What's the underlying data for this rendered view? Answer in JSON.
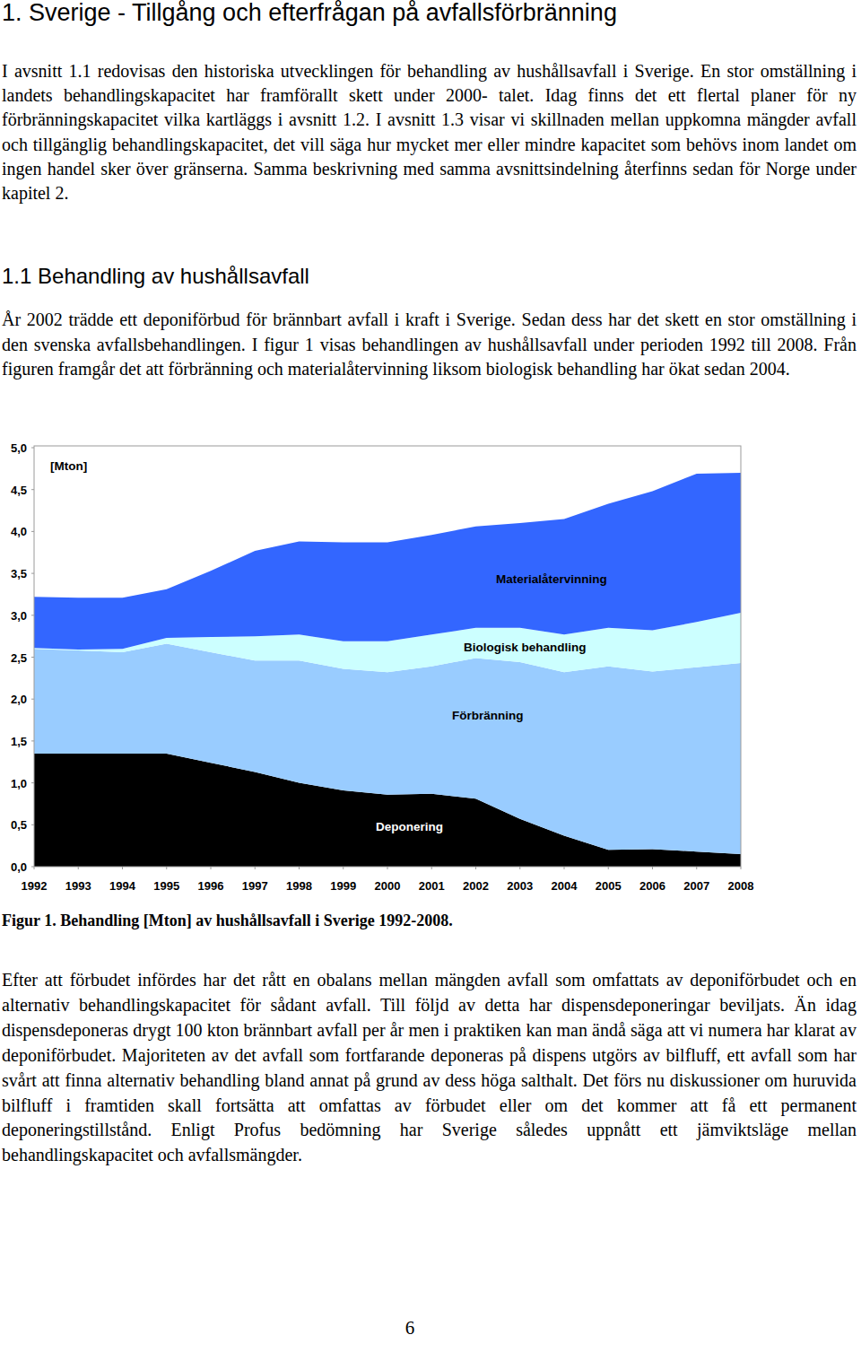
{
  "page": {
    "heading": "1. Sverige - Tillgång och efterfrågan på avfallsförbränning",
    "intro": "I avsnitt 1.1 redovisas den historiska utvecklingen för behandling av hushållsavfall i Sverige. En stor omställning i landets behandlingskapacitet har framförallt skett under 2000- talet. Idag finns det ett flertal planer för ny förbränningskapacitet vilka kartläggs i avsnitt 1.2. I avsnitt 1.3 visar vi skillnaden mellan uppkomna mängder avfall och tillgänglig behandlingskapacitet, det vill säga hur mycket mer eller mindre kapacitet som behövs inom landet om ingen handel sker över gränserna. Samma beskrivning med samma avsnittsindelning återfinns sedan för Norge under kapitel 2.",
    "section_heading": "1.1 Behandling av hushållsavfall",
    "section_text": "År 2002 trädde ett deponiförbud för brännbart avfall i kraft i Sverige. Sedan dess har det skett en stor omställning i den svenska avfallsbehandlingen. I figur 1 visas behandlingen av hushållsavfall under perioden 1992 till 2008. Från figuren framgår det att förbränning och materialåtervinning liksom biologisk behandling har ökat sedan 2004.",
    "caption": "Figur 1. Behandling [Mton] av hushållsavfall i Sverige 1992-2008.",
    "text_after": "Efter att förbudet infördes har det rått en obalans mellan mängden avfall som omfattats av deponiförbudet och en alternativ behandlingskapacitet för sådant avfall. Till följd av detta har dispensdeponeringar beviljats. Än idag dispensdeponeras drygt 100 kton brännbart avfall per år men i praktiken kan man ändå säga att vi numera har klarat av deponiförbudet. Majoriteten av det avfall som fortfarande deponeras på dispens utgörs av bilfluff, ett avfall som har svårt att finna alternativ behandling bland annat på grund av dess höga salthalt. Det förs nu diskussioner om huruvida bilfluff i framtiden skall fortsätta att omfattas av förbudet eller om det kommer att få ett permanent deponeringstillstånd. Enligt Profus bedömning har Sverige således uppnått ett jämviktsläge mellan behandlingskapacitet och avfallsmängder.",
    "page_number": "6"
  },
  "chart_data": {
    "type": "area",
    "stacked": true,
    "y_label": "[Mton]",
    "x": [
      1992,
      1993,
      1994,
      1995,
      1996,
      1997,
      1998,
      1999,
      2000,
      2001,
      2002,
      2003,
      2004,
      2005,
      2006,
      2007,
      2008
    ],
    "xlim": [
      1992,
      2008
    ],
    "xticks": [
      1992,
      1993,
      1994,
      1995,
      1996,
      1997,
      1998,
      1999,
      2000,
      2001,
      2002,
      2003,
      2004,
      2005,
      2006,
      2007,
      2008
    ],
    "ylim": [
      0,
      5
    ],
    "yticks": [
      {
        "value": 0,
        "label": "0,0"
      },
      {
        "value": 0.5,
        "label": "0,5"
      },
      {
        "value": 1,
        "label": "1,0"
      },
      {
        "value": 1.5,
        "label": "1,5"
      },
      {
        "value": 2,
        "label": "2,0"
      },
      {
        "value": 2.5,
        "label": "2,5"
      },
      {
        "value": 3,
        "label": "3,0"
      },
      {
        "value": 3.5,
        "label": "3,5"
      },
      {
        "value": 4,
        "label": "4,0"
      },
      {
        "value": 4.5,
        "label": "4,5"
      },
      {
        "value": 5,
        "label": "5,0"
      }
    ],
    "grid": false,
    "series": [
      {
        "name": "Deponering",
        "color": "#000000",
        "values": [
          1.35,
          1.35,
          1.35,
          1.35,
          1.24,
          1.13,
          1.0,
          0.91,
          0.86,
          0.87,
          0.81,
          0.57,
          0.37,
          0.2,
          0.21,
          0.18,
          0.15
        ]
      },
      {
        "name": "Förbränning",
        "color": "#99ccff",
        "values": [
          1.25,
          1.23,
          1.21,
          1.31,
          1.32,
          1.33,
          1.46,
          1.45,
          1.46,
          1.52,
          1.68,
          1.87,
          1.95,
          2.19,
          2.12,
          2.2,
          2.28
        ]
      },
      {
        "name": "Biologisk behandling",
        "color": "#ccffff",
        "values": [
          0.01,
          0.01,
          0.04,
          0.07,
          0.18,
          0.29,
          0.31,
          0.33,
          0.37,
          0.38,
          0.36,
          0.41,
          0.45,
          0.46,
          0.49,
          0.54,
          0.6
        ]
      },
      {
        "name": "Materialåtervinning",
        "color": "#3366ff",
        "values": [
          0.61,
          0.62,
          0.61,
          0.58,
          0.79,
          1.02,
          1.11,
          1.18,
          1.18,
          1.19,
          1.21,
          1.25,
          1.38,
          1.48,
          1.66,
          1.77,
          1.67
        ]
      }
    ]
  }
}
